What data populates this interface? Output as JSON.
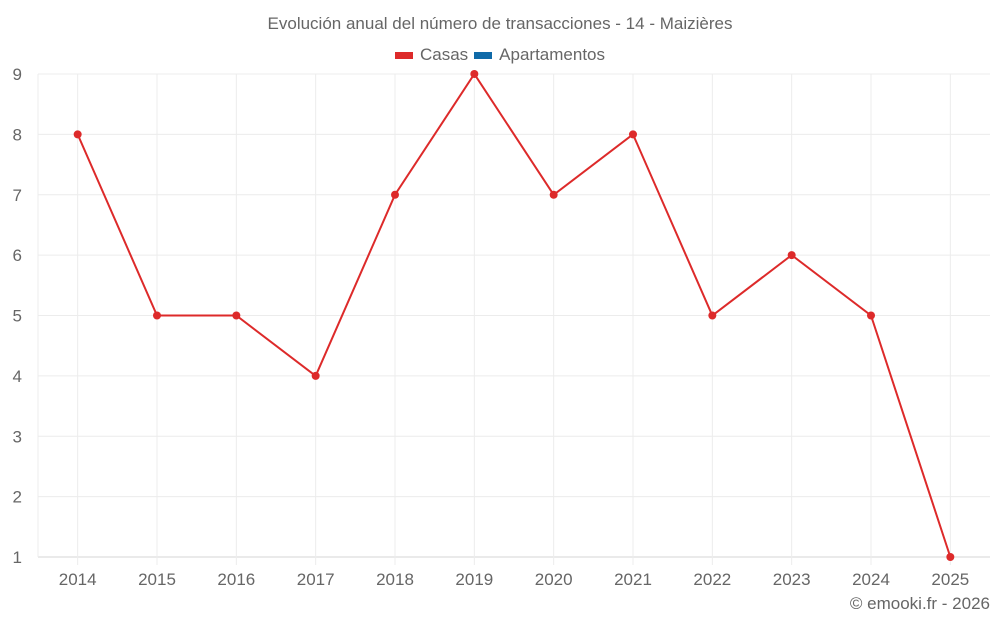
{
  "chart_data": {
    "type": "line",
    "title": "Evolución anual del número de transacciones - 14 - Maizières",
    "xlabel": "",
    "ylabel": "",
    "categories": [
      "2014",
      "2015",
      "2016",
      "2017",
      "2018",
      "2019",
      "2020",
      "2021",
      "2022",
      "2023",
      "2024",
      "2025"
    ],
    "series": [
      {
        "name": "Casas",
        "color": "#dd2a2a",
        "values": [
          8,
          5,
          5,
          4,
          7,
          9,
          7,
          8,
          5,
          6,
          5,
          1
        ]
      },
      {
        "name": "Apartamentos",
        "color": "#0f6aa8",
        "values": []
      }
    ],
    "ylim": [
      1,
      9
    ],
    "yticks": [
      1,
      2,
      3,
      4,
      5,
      6,
      7,
      8,
      9
    ],
    "grid": true,
    "legend_position": "top"
  },
  "title": "Evolución anual del número de transacciones - 14 - Maizières",
  "legend": [
    {
      "label": "Casas",
      "color": "#dd2a2a"
    },
    {
      "label": "Apartamentos",
      "color": "#0f6aa8"
    }
  ],
  "credit": "© emooki.fr - 2026"
}
